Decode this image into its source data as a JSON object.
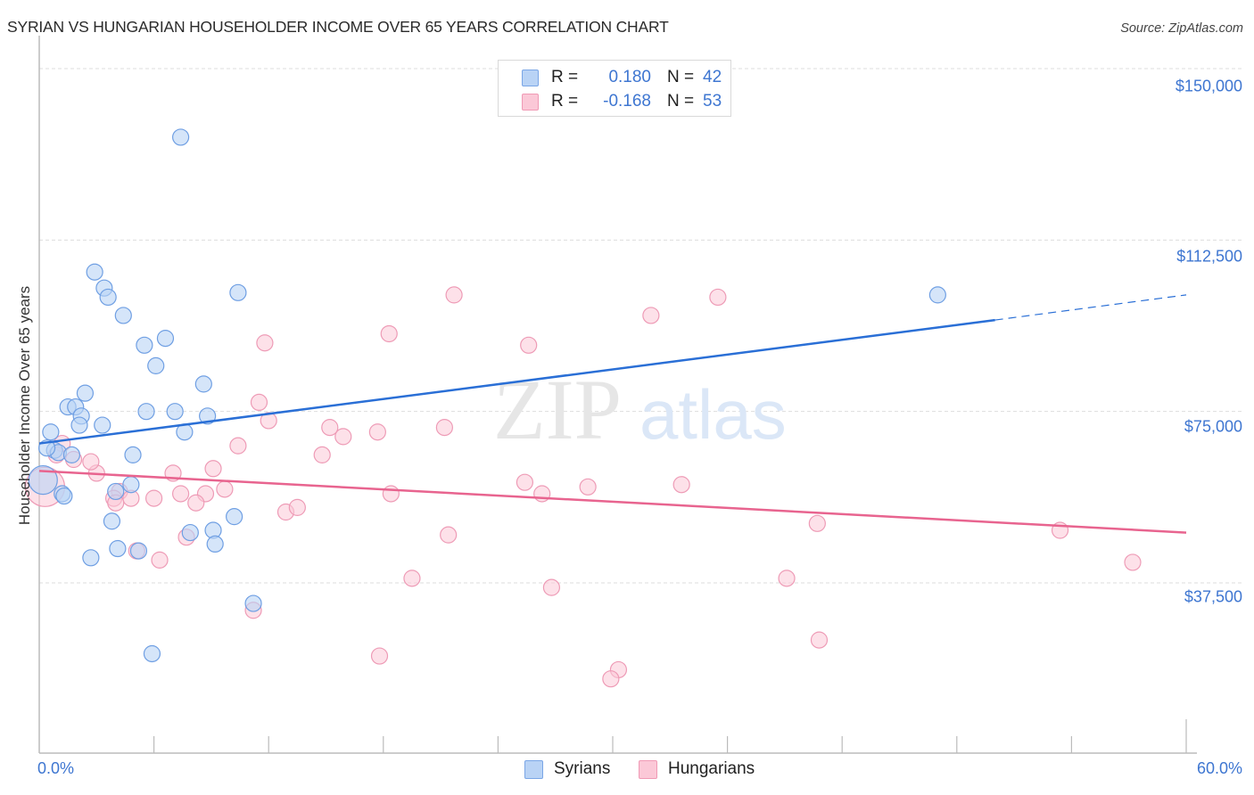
{
  "title": "SYRIAN VS HUNGARIAN HOUSEHOLDER INCOME OVER 65 YEARS CORRELATION CHART",
  "source": "Source: ZipAtlas.com",
  "watermark": {
    "zip": "ZIP",
    "atlas": "atlas"
  },
  "legend": {
    "rows": [
      {
        "name": "Syrians",
        "r_label": "R =",
        "r_value": "0.180",
        "n_label": "N =",
        "n_value": "42",
        "color": "#b9d3f5"
      },
      {
        "name": "Hungarians",
        "r_label": "R =",
        "r_value": "-0.168",
        "n_label": "N =",
        "n_value": "53",
        "color": "#fbc8d7"
      }
    ]
  },
  "colors": {
    "syrians_fill": "#b9d3f5",
    "syrians_stroke": "#6f9fe3",
    "syrians_line": "#2a6fd6",
    "hungarians_fill": "#fbc8d7",
    "hungarians_stroke": "#ee9bb6",
    "hungarians_line": "#e8648f",
    "axis_text": "#3e76d1",
    "grid": "#dddddd"
  },
  "chart_data": {
    "type": "scatter",
    "title": "SYRIAN VS HUNGARIAN HOUSEHOLDER INCOME OVER 65 YEARS CORRELATION CHART",
    "xlabel": "",
    "ylabel": "Householder Income Over 65 years",
    "xlim": [
      0,
      60
    ],
    "ylim": [
      0,
      165000
    ],
    "x_tick_labels": [
      "0.0%",
      "60.0%"
    ],
    "y_ticks": [
      37500,
      75000,
      112500,
      150000
    ],
    "y_tick_labels": [
      "$37,500",
      "$75,000",
      "$112,500",
      "$150,000"
    ],
    "grid": {
      "horizontal": true,
      "vertical": false,
      "style": "dashed"
    },
    "legend_position": "bottom-center",
    "series": [
      {
        "name": "Syrians",
        "r": 0.18,
        "n": 42,
        "trend": {
          "x0": 0,
          "y0": 68000,
          "x1": 50,
          "y1": 95000,
          "dashed_extension_to_x": 60,
          "dashed_end_y": 100500
        },
        "points": [
          [
            7.4,
            135000
          ],
          [
            2.9,
            105500
          ],
          [
            3.4,
            102000
          ],
          [
            3.6,
            100000
          ],
          [
            4.4,
            96000
          ],
          [
            10.4,
            101000
          ],
          [
            47.0,
            100500
          ],
          [
            5.5,
            89500
          ],
          [
            6.6,
            91000
          ],
          [
            6.1,
            85000
          ],
          [
            8.6,
            81000
          ],
          [
            2.4,
            79000
          ],
          [
            1.5,
            76000
          ],
          [
            1.9,
            76000
          ],
          [
            2.2,
            74000
          ],
          [
            2.1,
            72000
          ],
          [
            3.3,
            72000
          ],
          [
            5.6,
            75000
          ],
          [
            7.1,
            75000
          ],
          [
            8.8,
            74000
          ],
          [
            7.6,
            70500
          ],
          [
            0.6,
            70500
          ],
          [
            4.9,
            65500
          ],
          [
            0.8,
            66500
          ],
          [
            1.0,
            66000
          ],
          [
            1.7,
            65500
          ],
          [
            4.8,
            59000
          ],
          [
            4.0,
            57500
          ],
          [
            1.2,
            57000
          ],
          [
            1.3,
            56500
          ],
          [
            10.2,
            52000
          ],
          [
            3.8,
            51000
          ],
          [
            9.1,
            49000
          ],
          [
            7.9,
            48500
          ],
          [
            9.2,
            46000
          ],
          [
            4.1,
            45000
          ],
          [
            5.2,
            44500
          ],
          [
            2.7,
            43000
          ],
          [
            11.2,
            33000
          ],
          [
            5.9,
            22000
          ],
          [
            0.2,
            60000
          ],
          [
            0.4,
            67000
          ]
        ]
      },
      {
        "name": "Hungarians",
        "r": -0.168,
        "n": 53,
        "trend": {
          "x0": 0,
          "y0": 62000,
          "x1": 60,
          "y1": 48500
        },
        "points": [
          [
            21.7,
            100500
          ],
          [
            35.5,
            100000
          ],
          [
            32.0,
            96000
          ],
          [
            18.3,
            92000
          ],
          [
            11.8,
            90000
          ],
          [
            25.6,
            89500
          ],
          [
            11.5,
            77000
          ],
          [
            12.0,
            73000
          ],
          [
            15.2,
            71500
          ],
          [
            21.2,
            71500
          ],
          [
            17.7,
            70500
          ],
          [
            15.9,
            69500
          ],
          [
            10.4,
            67500
          ],
          [
            14.8,
            65500
          ],
          [
            9.1,
            62500
          ],
          [
            7.0,
            61500
          ],
          [
            3.0,
            61500
          ],
          [
            1.2,
            68000
          ],
          [
            1.8,
            64500
          ],
          [
            2.7,
            64000
          ],
          [
            0.9,
            65500
          ],
          [
            4.2,
            57500
          ],
          [
            3.9,
            56000
          ],
          [
            4.8,
            56000
          ],
          [
            6.0,
            56000
          ],
          [
            7.4,
            57000
          ],
          [
            8.7,
            57000
          ],
          [
            9.7,
            58000
          ],
          [
            8.2,
            55000
          ],
          [
            4.0,
            55000
          ],
          [
            18.4,
            57000
          ],
          [
            25.4,
            59500
          ],
          [
            26.3,
            57000
          ],
          [
            28.7,
            58500
          ],
          [
            33.6,
            59000
          ],
          [
            12.9,
            53000
          ],
          [
            13.5,
            54000
          ],
          [
            5.1,
            44500
          ],
          [
            6.3,
            42500
          ],
          [
            7.7,
            47500
          ],
          [
            21.4,
            48000
          ],
          [
            40.7,
            50500
          ],
          [
            53.4,
            49000
          ],
          [
            57.2,
            42000
          ],
          [
            19.5,
            38500
          ],
          [
            39.1,
            38500
          ],
          [
            26.8,
            36500
          ],
          [
            11.2,
            31500
          ],
          [
            17.8,
            21500
          ],
          [
            40.8,
            25000
          ],
          [
            30.3,
            18500
          ],
          [
            29.9,
            16500
          ],
          [
            0.3,
            58500
          ]
        ]
      }
    ]
  },
  "axes": {
    "ylabel": "Householder Income Over 65 years",
    "x_min_label": "0.0%",
    "x_max_label": "60.0%",
    "y_labels": [
      "$150,000",
      "$112,500",
      "$75,000",
      "$37,500"
    ]
  },
  "bottom_legend": {
    "items": [
      "Syrians",
      "Hungarians"
    ]
  }
}
